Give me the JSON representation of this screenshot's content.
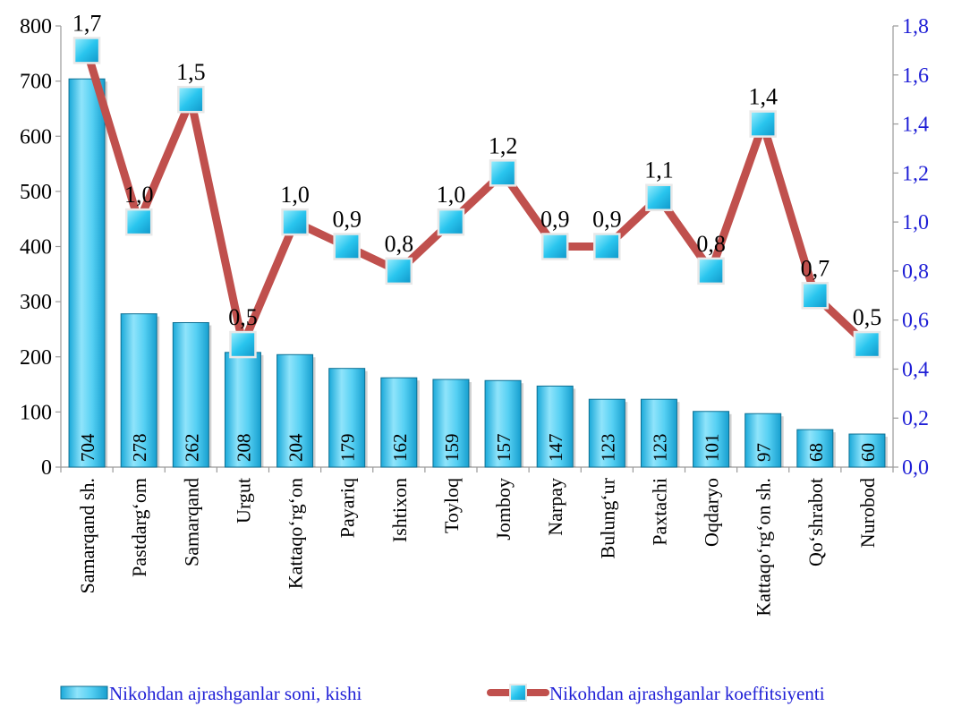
{
  "chart_data": {
    "type": "bar",
    "categories": [
      "Samarqand sh.",
      "Pastdarg‘om",
      "Samarqand",
      "Urgut",
      "Kattaqo‘rg‘on",
      "Payariq",
      "Ishtixon",
      "Toyloq",
      "Jomboy",
      "Narpay",
      "Bulung‘ur",
      "Paxtachi",
      "Oqdaryo",
      "Kattaqo‘rg‘on sh.",
      "Qo‘shrabot",
      "Nurobod"
    ],
    "series": [
      {
        "name": "Nikohdan ajrashganlar soni, kishi",
        "type": "bar",
        "axis": "left",
        "values": [
          704,
          278,
          262,
          208,
          204,
          179,
          162,
          159,
          157,
          147,
          123,
          123,
          101,
          97,
          68,
          60
        ],
        "labels": [
          "704",
          "278",
          "262",
          "208",
          "204",
          "179",
          "162",
          "159",
          "157",
          "147",
          "123",
          "123",
          "101",
          "97",
          "68",
          "60"
        ],
        "color": "#3fc8f0"
      },
      {
        "name": "Nikohdan ajrashganlar koeffitsiyenti",
        "type": "line",
        "axis": "right",
        "values": [
          1.7,
          1.0,
          1.5,
          0.5,
          1.0,
          0.9,
          0.8,
          1.0,
          1.2,
          0.9,
          0.9,
          1.1,
          0.8,
          1.4,
          0.7,
          0.5
        ],
        "labels": [
          "1,7",
          "1,0",
          "1,5",
          "0,5",
          "1,0",
          "0,9",
          "0,8",
          "1,0",
          "1,2",
          "0,9",
          "0,9",
          "1,1",
          "0,8",
          "1,4",
          "0,7",
          "0,5"
        ],
        "color": "#c0504d",
        "marker_color": "#29c5ee"
      }
    ],
    "y_left": {
      "range": [
        0,
        800
      ],
      "ticks": [
        0,
        100,
        200,
        300,
        400,
        500,
        600,
        700,
        800
      ],
      "tick_labels": [
        "0",
        "100",
        "200",
        "300",
        "400",
        "500",
        "600",
        "700",
        "800"
      ],
      "color": "#000000"
    },
    "y_right": {
      "range": [
        0,
        1.8
      ],
      "ticks": [
        0,
        0.2,
        0.4,
        0.6,
        0.8,
        1.0,
        1.2,
        1.4,
        1.6,
        1.8
      ],
      "tick_labels": [
        "0,0",
        "0,2",
        "0,4",
        "0,6",
        "0,8",
        "1,0",
        "1,2",
        "1,4",
        "1,6",
        "1,8"
      ],
      "color": "#1f1fd6"
    },
    "grid": false,
    "legend": {
      "placement": "bottom",
      "items": [
        "Nikohdan ajrashganlar soni, kishi",
        "Nikohdan ajrashganlar koeffitsiyenti"
      ],
      "color": "#1f1fd6"
    }
  }
}
